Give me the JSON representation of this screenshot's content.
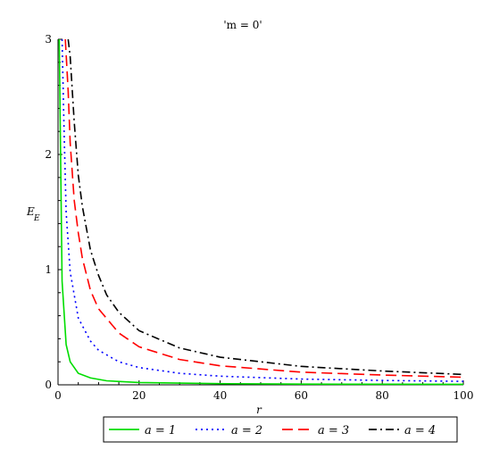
{
  "chart_data": {
    "type": "line",
    "title": "'m = 0'",
    "xlabel": "r",
    "ylabel": "E",
    "ylabel_sub": "E",
    "xlim": [
      0,
      100
    ],
    "ylim": [
      0,
      3
    ],
    "x_ticks": [
      "0",
      "20",
      "40",
      "60",
      "80",
      "100"
    ],
    "y_ticks": [
      "0",
      "1",
      "2",
      "3"
    ],
    "grid": false,
    "legend_position": "bottom",
    "series": [
      {
        "name": "a = 1",
        "color": "#00dd00",
        "dash": "solid",
        "x": [
          0.3,
          0.5,
          1,
          2,
          3,
          5,
          8,
          12,
          20,
          40,
          60,
          80,
          100
        ],
        "y": [
          3.0,
          2.4,
          0.9,
          0.35,
          0.2,
          0.1,
          0.06,
          0.035,
          0.02,
          0.01,
          0.006,
          0.005,
          0.004
        ]
      },
      {
        "name": "a = 2",
        "color": "#0000ff",
        "dash": "dotted",
        "x": [
          1.0,
          1.5,
          2,
          3,
          5,
          8,
          10,
          15,
          20,
          30,
          40,
          60,
          80,
          100
        ],
        "y": [
          3.0,
          2.2,
          1.5,
          0.98,
          0.58,
          0.38,
          0.3,
          0.2,
          0.15,
          0.1,
          0.075,
          0.05,
          0.038,
          0.03
        ]
      },
      {
        "name": "a = 3",
        "color": "#ff0000",
        "dash": "dashed",
        "x": [
          1.8,
          2.5,
          3,
          4,
          5,
          6,
          8,
          10,
          15,
          20,
          30,
          40,
          60,
          80,
          100
        ],
        "y": [
          3.0,
          2.55,
          2.1,
          1.6,
          1.32,
          1.1,
          0.82,
          0.66,
          0.45,
          0.33,
          0.22,
          0.165,
          0.11,
          0.085,
          0.066
        ]
      },
      {
        "name": "a = 4",
        "color": "#000000",
        "dash": "dashdot",
        "x": [
          2.5,
          3,
          4,
          5,
          6,
          8,
          10,
          12,
          15,
          20,
          30,
          40,
          60,
          80,
          100
        ],
        "y": [
          3.0,
          2.85,
          2.28,
          1.82,
          1.55,
          1.17,
          0.95,
          0.78,
          0.63,
          0.47,
          0.32,
          0.24,
          0.16,
          0.12,
          0.09
        ]
      }
    ]
  }
}
